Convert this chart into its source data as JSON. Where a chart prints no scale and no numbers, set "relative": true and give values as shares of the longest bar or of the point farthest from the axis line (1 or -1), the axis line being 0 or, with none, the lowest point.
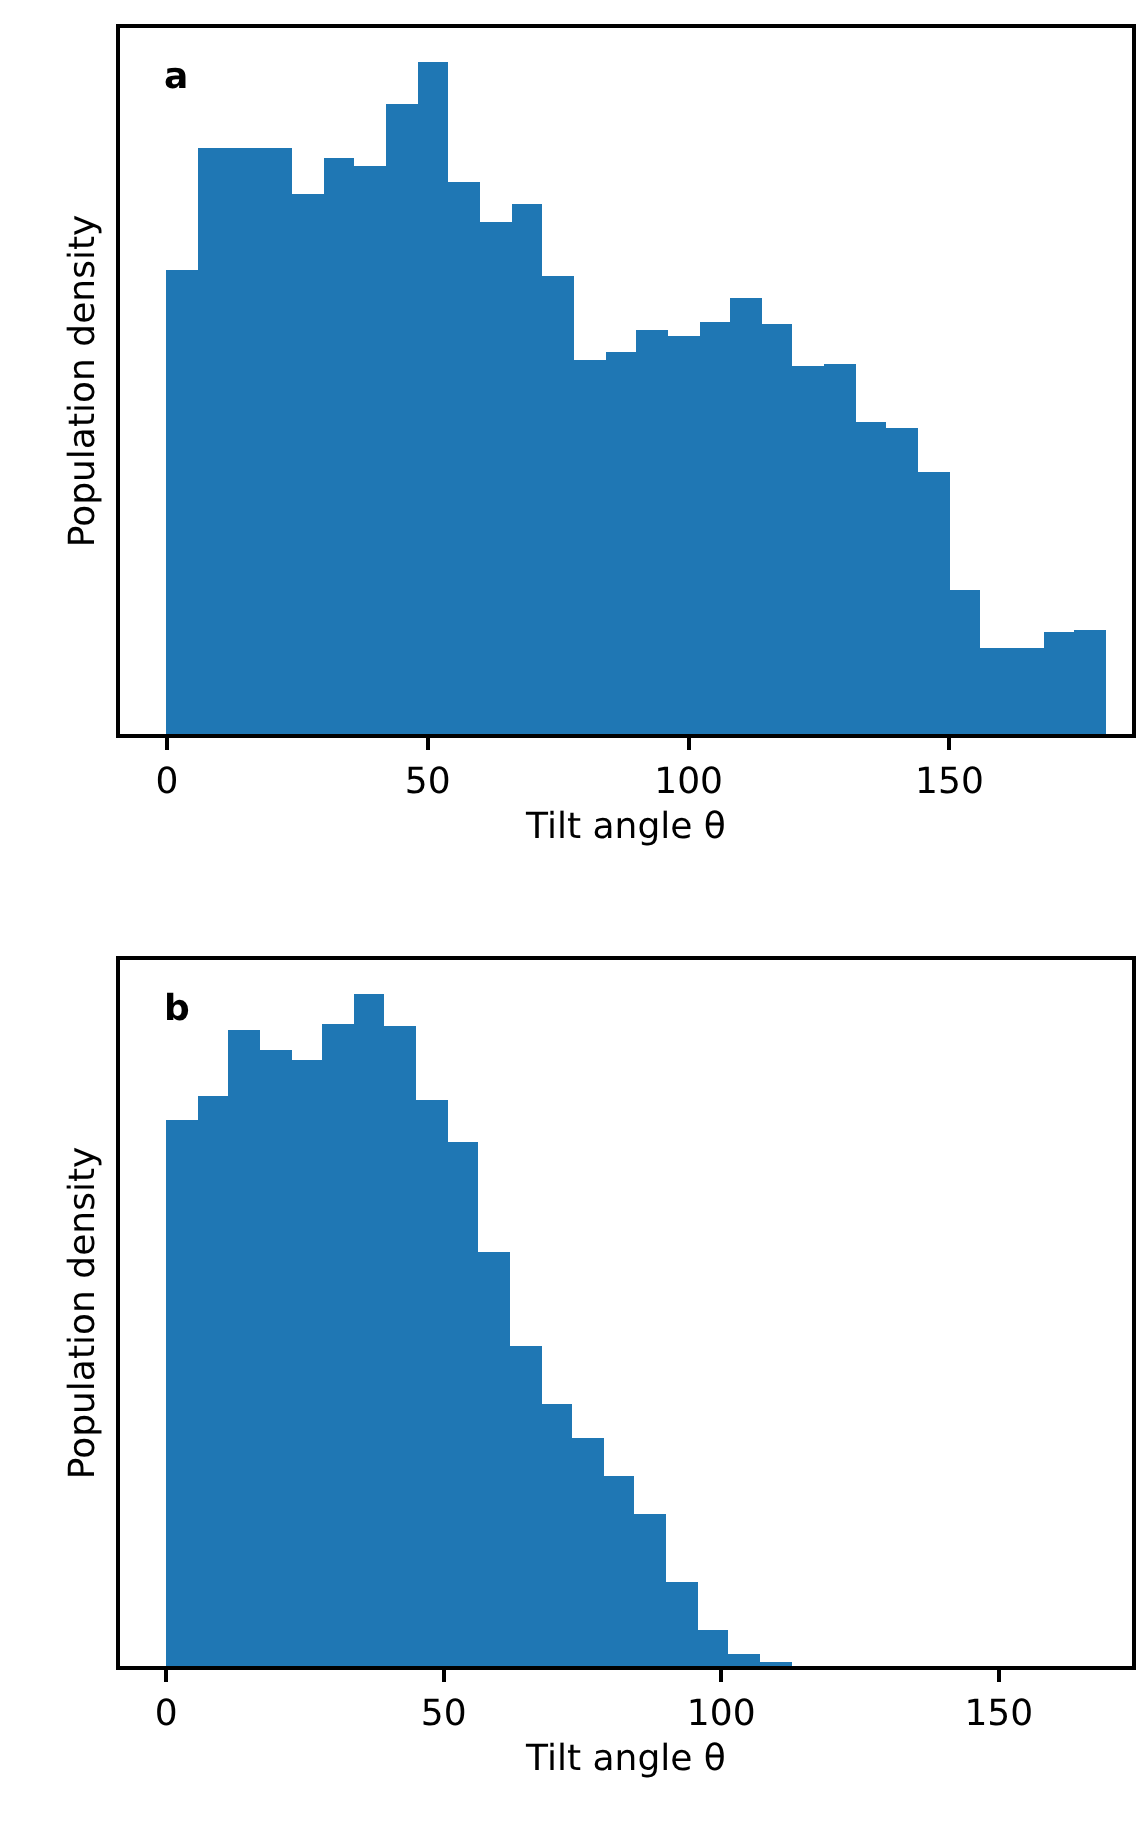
{
  "chart_data": [
    {
      "type": "bar",
      "relative": true,
      "color": "#1f77b4",
      "xlabel": "Tilt angle θ",
      "ylabel": "Population density",
      "annotations": [
        "a"
      ],
      "x": [
        3,
        9,
        15,
        21,
        27,
        33,
        39,
        45,
        51,
        57,
        63,
        69,
        75,
        81,
        87,
        93,
        99,
        105,
        111,
        117,
        123,
        129,
        135,
        141,
        147,
        153,
        159,
        165,
        171,
        177
      ],
      "values": [
        0.69,
        0.871,
        0.873,
        0.873,
        0.803,
        0.858,
        0.845,
        0.936,
        1.0,
        0.821,
        0.762,
        0.787,
        0.682,
        0.557,
        0.567,
        0.6,
        0.593,
        0.614,
        0.648,
        0.609,
        0.548,
        0.549,
        0.465,
        0.454,
        0.39,
        0.214,
        0.128,
        0.127,
        0.152,
        0.154
      ],
      "xlim": [
        -9,
        185
      ],
      "xticks": [
        0,
        50,
        100,
        150
      ]
    },
    {
      "type": "bar",
      "relative": true,
      "color": "#1f77b4",
      "xlabel": "Tilt angle θ",
      "ylabel": "Population density",
      "annotations": [
        "b"
      ],
      "x": [
        2.82,
        8.45,
        14.08,
        19.71,
        25.34,
        30.97,
        36.6,
        42.23,
        47.86,
        53.49,
        59.12,
        64.75,
        70.38,
        76.01,
        81.64,
        87.27,
        92.9,
        98.53,
        104.16,
        109.79
      ],
      "values": [
        0.813,
        0.849,
        0.946,
        0.916,
        0.902,
        0.956,
        1.0,
        0.952,
        0.842,
        0.779,
        0.617,
        0.477,
        0.39,
        0.338,
        0.283,
        0.225,
        0.124,
        0.053,
        0.018,
        0.005
      ],
      "xlim": [
        -8.3,
        174
      ],
      "xticks": [
        0,
        50,
        100,
        150
      ]
    }
  ]
}
